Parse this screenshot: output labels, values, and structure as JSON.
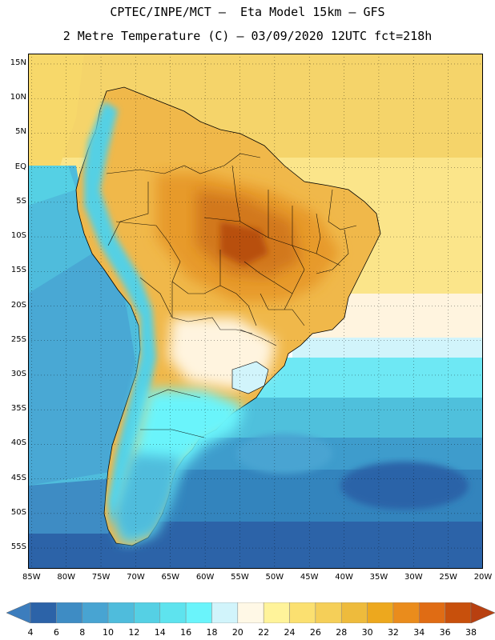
{
  "header": {
    "line1": "CPTEC/INPE/MCT –  Eta Model 15km – GFS",
    "line2": "2 Metre Temperature (C) – 03/09/2020 12UTC fct=218h"
  },
  "axes": {
    "lat_labels": [
      "15N",
      "10N",
      "5N",
      "EQ",
      "5S",
      "10S",
      "15S",
      "20S",
      "25S",
      "30S",
      "35S",
      "40S",
      "45S",
      "50S",
      "55S"
    ],
    "lat_values": [
      15,
      10,
      5,
      0,
      -5,
      -10,
      -15,
      -20,
      -25,
      -30,
      -35,
      -40,
      -45,
      -50,
      -55
    ],
    "lon_labels": [
      "85W",
      "80W",
      "75W",
      "70W",
      "65W",
      "60W",
      "55W",
      "50W",
      "45W",
      "40W",
      "35W",
      "30W",
      "25W",
      "20W"
    ],
    "lon_values": [
      -85,
      -80,
      -75,
      -70,
      -65,
      -60,
      -55,
      -50,
      -45,
      -40,
      -35,
      -30,
      -25,
      -20
    ],
    "lat_range": [
      -58,
      16.5
    ],
    "lon_range": [
      -85.5,
      -20
    ]
  },
  "colorbar": {
    "labels": [
      "4",
      "6",
      "8",
      "10",
      "12",
      "14",
      "16",
      "18",
      "20",
      "22",
      "24",
      "26",
      "28",
      "30",
      "32",
      "34",
      "36",
      "38"
    ],
    "colors": [
      "#3c7dbd",
      "#2c63a8",
      "#3e8cc4",
      "#48a4d2",
      "#4fbcdc",
      "#55d0e4",
      "#5ee3ee",
      "#6af4fb",
      "#d1f4fb",
      "#fff8e6",
      "#fff39a",
      "#fbe070",
      "#f5cf58",
      "#eebb3c",
      "#eda81e",
      "#ea8c1c",
      "#e06c14",
      "#c8500c",
      "#b84010"
    ]
  },
  "map": {
    "ocean_temps": [
      {
        "lat": 15,
        "lon": -40,
        "temp": 26
      },
      {
        "lat": -20,
        "lon": -30,
        "temp": 24
      },
      {
        "lat": -27,
        "lon": -25,
        "temp": 18
      },
      {
        "lat": -33,
        "lon": -40,
        "temp": 14
      },
      {
        "lat": -45,
        "lon": -35,
        "temp": 8
      },
      {
        "lat": -55,
        "lon": -40,
        "temp": 6
      },
      {
        "lat": -10,
        "lon": -82,
        "temp": 12
      }
    ],
    "hot_spot": {
      "lat": -12,
      "lon": -54,
      "temp": 36
    }
  }
}
